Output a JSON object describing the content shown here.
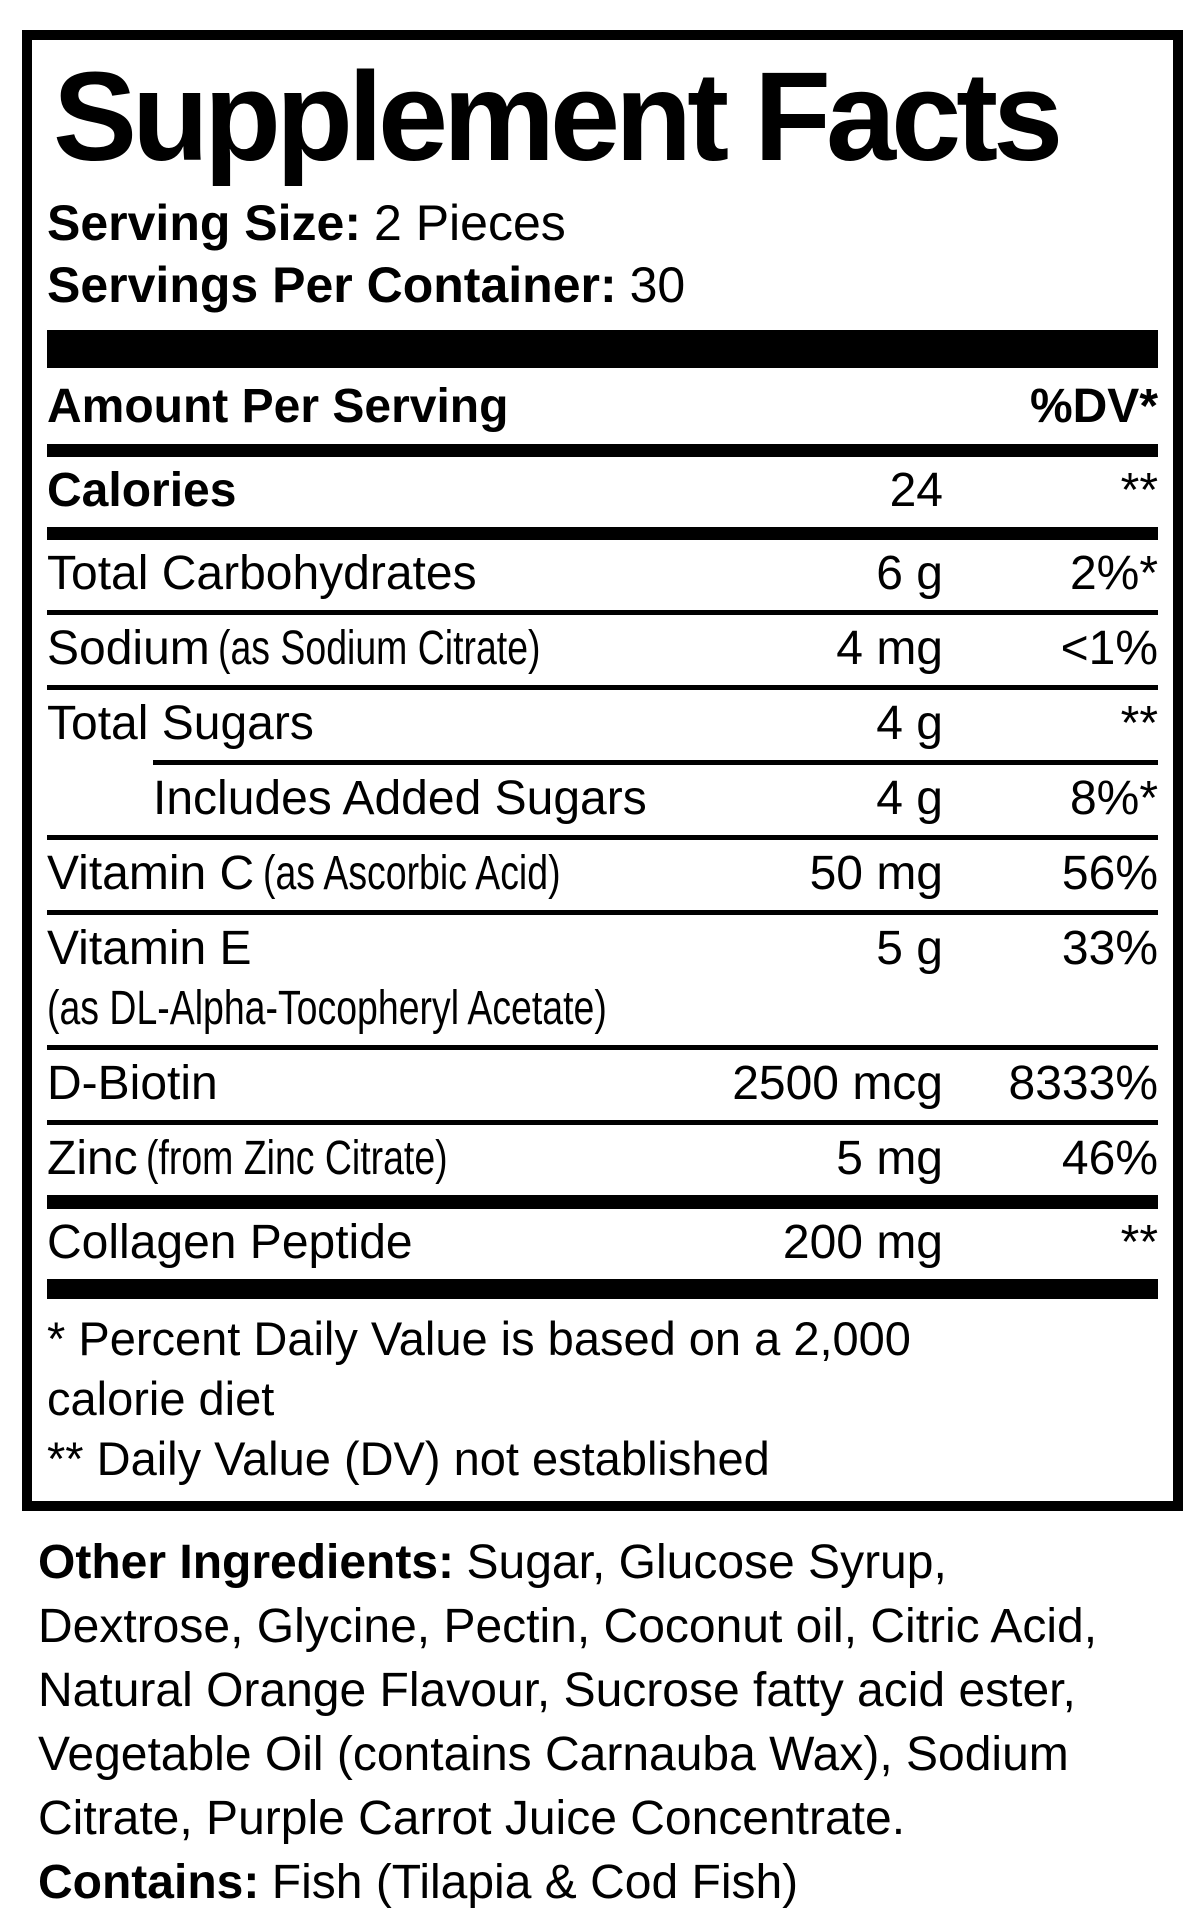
{
  "label": {
    "title": "Supplement Facts",
    "serving_size_label": "Serving Size:",
    "serving_size_value": "2 Pieces",
    "servings_per_container_label": "Servings Per Container:",
    "servings_per_container_value": "30",
    "header": {
      "amount_per_serving": "Amount Per Serving",
      "dv": "%DV*"
    },
    "rows": [
      {
        "name": "Calories",
        "amount": "24",
        "dv": "**"
      },
      {
        "name": "Total Carbohydrates",
        "amount": "6 g",
        "dv": "2%*"
      },
      {
        "name": "Sodium",
        "note": "(as Sodium Citrate)",
        "amount": "4 mg",
        "dv": "<1%"
      },
      {
        "name": "Total Sugars",
        "amount": "4 g",
        "dv": "**"
      },
      {
        "name": "Includes Added Sugars",
        "amount": "4 g",
        "dv": "8%*"
      },
      {
        "name": "Vitamin C",
        "note": "(as Ascorbic Acid)",
        "amount": "50 mg",
        "dv": "56%"
      },
      {
        "name": "Vitamin E",
        "note2": "(as DL-Alpha-Tocopheryl Acetate)",
        "amount": "5 g",
        "dv": "33%"
      },
      {
        "name": "D-Biotin",
        "amount": "2500 mcg",
        "dv": "8333%"
      },
      {
        "name": "Zinc",
        "note": "(from Zinc Citrate)",
        "amount": "5 mg",
        "dv": "46%"
      },
      {
        "name": "Collagen Peptide",
        "amount": "200 mg",
        "dv": "**"
      }
    ],
    "footnotes": [
      "* Percent Daily Value is based on a 2,000 calorie diet",
      "** Daily Value (DV) not established"
    ]
  },
  "other_ingredients": {
    "label": "Other Ingredients:",
    "text": "Sugar, Glucose Syrup, Dextrose, Glycine, Pectin, Coconut oil, Citric Acid, Natural Orange Flavour, Sucrose fatty acid ester, Vegetable Oil (contains Carnauba Wax), Sodium Citrate, Purple Carrot Juice Concentrate."
  },
  "contains": {
    "label": "Contains:",
    "text": "Fish (Tilapia & Cod Fish)"
  },
  "colors": {
    "ink": "#000000",
    "paper": "#ffffff"
  }
}
